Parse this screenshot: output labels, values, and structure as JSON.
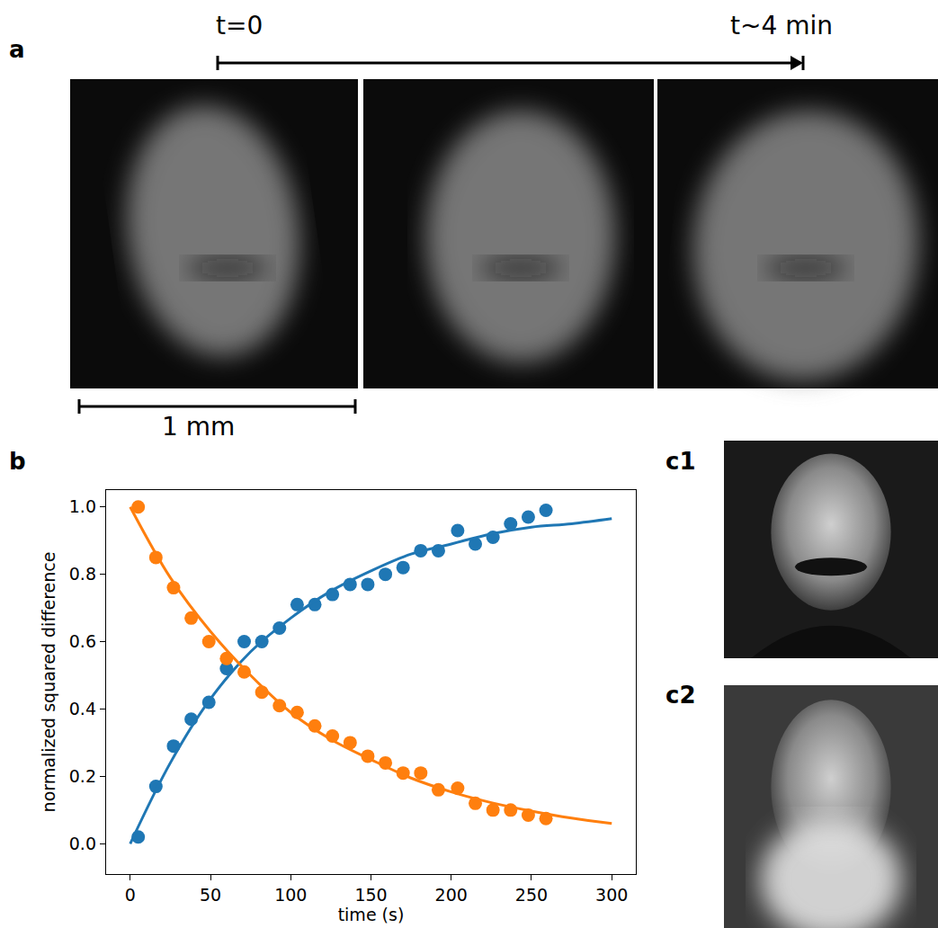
{
  "figure": {
    "panel_a": {
      "label": "a",
      "time_start": "t=0",
      "time_end": "t~4 min",
      "scale_bar": "1 mm"
    },
    "panel_b": {
      "label": "b"
    },
    "panel_c": {
      "labels": [
        "c1",
        "c2"
      ]
    }
  },
  "chart_data": {
    "type": "scatter",
    "x_label": "time (s)",
    "y_label": "normalized squared difference",
    "xlim": [
      -15,
      315
    ],
    "ylim": [
      -0.09,
      1.05
    ],
    "xticks": [
      0,
      50,
      100,
      150,
      200,
      250,
      300
    ],
    "yticks": [
      {
        "value": 0,
        "label": "0.0"
      },
      0.2,
      0.4,
      0.6,
      0.8,
      {
        "value": 1,
        "label": "1.0"
      }
    ],
    "grid": false,
    "series": [
      {
        "type": "scatter",
        "marker": "circle",
        "color": "#1f77b4",
        "x": [
          5,
          16,
          27,
          38,
          49,
          60,
          71,
          82,
          93,
          104,
          115,
          126,
          137,
          148,
          159,
          170,
          181,
          192,
          204,
          215,
          226,
          237,
          248,
          259
        ],
        "values": [
          0.02,
          0.17,
          0.29,
          0.37,
          0.42,
          0.52,
          0.6,
          0.6,
          0.64,
          0.71,
          0.71,
          0.74,
          0.77,
          0.77,
          0.8,
          0.82,
          0.87,
          0.87,
          0.93,
          0.89,
          0.91,
          0.95,
          0.97,
          0.99
        ]
      },
      {
        "type": "scatter",
        "marker": "circle",
        "color": "#ff7f0e",
        "x": [
          5,
          16,
          27,
          38,
          49,
          60,
          71,
          82,
          93,
          104,
          115,
          126,
          137,
          148,
          159,
          170,
          181,
          192,
          204,
          215,
          226,
          237,
          248,
          259
        ],
        "values": [
          1.0,
          0.85,
          0.76,
          0.67,
          0.6,
          0.55,
          0.51,
          0.45,
          0.41,
          0.39,
          0.35,
          0.32,
          0.3,
          0.26,
          0.24,
          0.21,
          0.21,
          0.16,
          0.165,
          0.12,
          0.1,
          0.1,
          0.085,
          0.075
        ]
      },
      {
        "type": "line",
        "line_style": "solid",
        "color": "#1f77b4",
        "x": [
          0,
          25,
          50,
          75,
          100,
          125,
          150,
          175,
          200,
          225,
          250,
          275,
          300
        ],
        "values": [
          0,
          0.24,
          0.43,
          0.57,
          0.67,
          0.75,
          0.81,
          0.86,
          0.89,
          0.92,
          0.94,
          0.95,
          0.965
        ]
      },
      {
        "type": "line",
        "line_style": "solid",
        "color": "#ff7f0e",
        "x": [
          0,
          25,
          50,
          75,
          100,
          125,
          150,
          175,
          200,
          225,
          250,
          275,
          300
        ],
        "values": [
          1,
          0.79,
          0.63,
          0.5,
          0.39,
          0.31,
          0.25,
          0.195,
          0.154,
          0.122,
          0.097,
          0.076,
          0.06
        ]
      }
    ]
  }
}
